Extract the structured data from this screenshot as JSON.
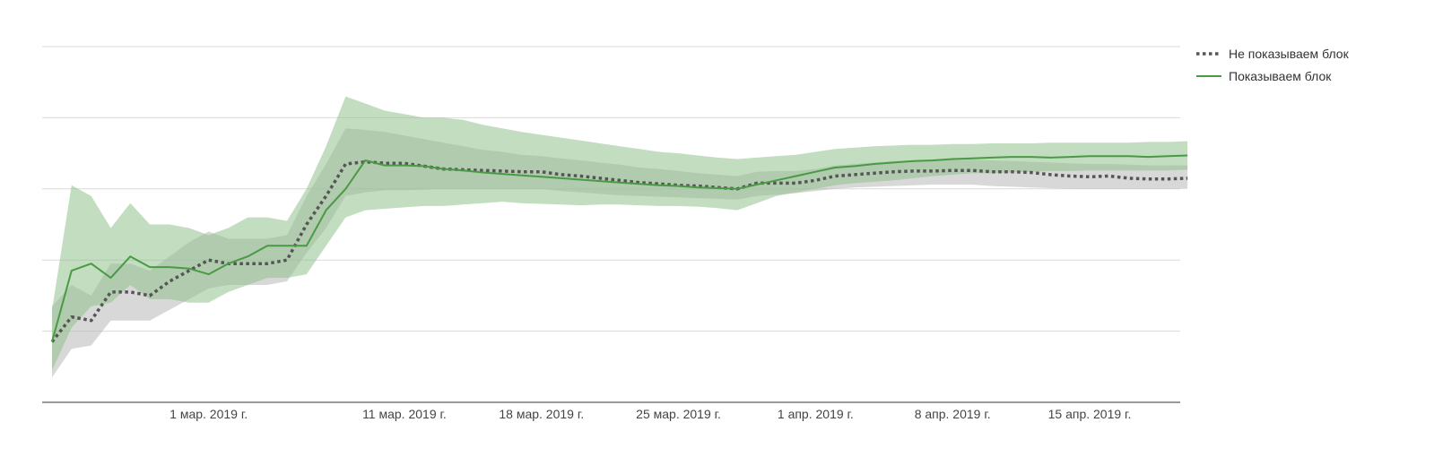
{
  "chart_data": {
    "type": "line",
    "title": "",
    "xlabel": "",
    "ylabel": "",
    "grid": true,
    "legend_position": "top-right",
    "x_ticks": [
      "1 мар. 2019 г.",
      "11 мар. 2019 г.",
      "18 мар. 2019 г.",
      "25 мар. 2019 г.",
      "1 апр. 2019 г.",
      "8 апр. 2019 г.",
      "15 апр. 2019 г."
    ],
    "y_tick_labels": [],
    "ylim": [
      0,
      5
    ],
    "x_start": "2019-02-21",
    "series": [
      {
        "name": "Не показываем блок",
        "color": "#555555",
        "band_color": "#b8b8b8",
        "style": "dotted",
        "values": [
          0.85,
          1.2,
          1.15,
          1.55,
          1.55,
          1.5,
          1.7,
          1.85,
          2.0,
          1.95,
          1.95,
          1.95,
          2.0,
          2.5,
          2.9,
          3.35,
          3.38,
          3.36,
          3.36,
          3.32,
          3.28,
          3.27,
          3.26,
          3.25,
          3.24,
          3.24,
          3.2,
          3.18,
          3.15,
          3.12,
          3.09,
          3.07,
          3.05,
          3.04,
          3.02,
          3.0,
          3.08,
          3.08,
          3.08,
          3.12,
          3.18,
          3.2,
          3.22,
          3.24,
          3.25,
          3.25,
          3.26,
          3.26,
          3.24,
          3.24,
          3.23,
          3.2,
          3.18,
          3.17,
          3.18,
          3.15,
          3.14,
          3.14,
          3.15
        ],
        "lower": [
          0.35,
          0.75,
          0.8,
          1.15,
          1.15,
          1.15,
          1.3,
          1.45,
          1.6,
          1.65,
          1.65,
          1.65,
          1.7,
          2.1,
          2.45,
          2.9,
          2.95,
          2.98,
          2.98,
          2.99,
          3.0,
          3.0,
          3.0,
          3.0,
          3.0,
          3.0,
          2.97,
          2.95,
          2.93,
          2.91,
          2.9,
          2.89,
          2.88,
          2.87,
          2.86,
          2.85,
          2.9,
          2.92,
          2.94,
          2.97,
          3.0,
          3.02,
          3.03,
          3.04,
          3.05,
          3.06,
          3.06,
          3.06,
          3.04,
          3.03,
          3.02,
          3.01,
          3.0,
          3.0,
          3.0,
          3.0,
          3.0,
          3.0,
          3.0
        ],
        "upper": [
          1.35,
          1.65,
          1.5,
          1.95,
          1.95,
          1.85,
          2.05,
          2.25,
          2.4,
          2.3,
          2.3,
          2.3,
          2.35,
          2.9,
          3.35,
          3.85,
          3.83,
          3.8,
          3.75,
          3.7,
          3.65,
          3.6,
          3.55,
          3.52,
          3.48,
          3.46,
          3.43,
          3.4,
          3.37,
          3.34,
          3.3,
          3.28,
          3.25,
          3.22,
          3.2,
          3.18,
          3.24,
          3.25,
          3.25,
          3.28,
          3.33,
          3.35,
          3.37,
          3.39,
          3.4,
          3.4,
          3.41,
          3.41,
          3.4,
          3.39,
          3.38,
          3.37,
          3.36,
          3.35,
          3.35,
          3.34,
          3.33,
          3.33,
          3.33
        ]
      },
      {
        "name": "Показываем блок",
        "color": "#4a9a45",
        "band_color": "#8fc18a",
        "style": "solid",
        "values": [
          0.85,
          1.85,
          1.95,
          1.75,
          2.05,
          1.9,
          1.9,
          1.88,
          1.8,
          1.95,
          2.05,
          2.2,
          2.2,
          2.2,
          2.7,
          3.0,
          3.4,
          3.33,
          3.33,
          3.32,
          3.28,
          3.26,
          3.23,
          3.21,
          3.19,
          3.17,
          3.15,
          3.13,
          3.11,
          3.09,
          3.07,
          3.05,
          3.04,
          3.02,
          3.01,
          3.0,
          3.06,
          3.12,
          3.18,
          3.24,
          3.3,
          3.32,
          3.35,
          3.37,
          3.39,
          3.4,
          3.42,
          3.43,
          3.44,
          3.45,
          3.45,
          3.44,
          3.45,
          3.46,
          3.46,
          3.46,
          3.45,
          3.46,
          3.47
        ],
        "lower": [
          0.45,
          1.05,
          1.35,
          1.4,
          1.65,
          1.45,
          1.45,
          1.4,
          1.4,
          1.55,
          1.65,
          1.75,
          1.75,
          1.8,
          2.2,
          2.6,
          2.7,
          2.72,
          2.74,
          2.76,
          2.76,
          2.78,
          2.8,
          2.82,
          2.8,
          2.79,
          2.78,
          2.77,
          2.78,
          2.78,
          2.77,
          2.76,
          2.76,
          2.75,
          2.73,
          2.7,
          2.8,
          2.9,
          2.95,
          3.0,
          3.05,
          3.08,
          3.1,
          3.12,
          3.15,
          3.18,
          3.2,
          3.22,
          3.22,
          3.23,
          3.24,
          3.25,
          3.25,
          3.26,
          3.26,
          3.26,
          3.26,
          3.26,
          3.27
        ],
        "upper": [
          1.3,
          3.05,
          2.9,
          2.45,
          2.8,
          2.5,
          2.5,
          2.45,
          2.35,
          2.45,
          2.6,
          2.6,
          2.55,
          3.0,
          3.6,
          4.3,
          4.2,
          4.1,
          4.05,
          4.0,
          4.0,
          3.97,
          3.9,
          3.85,
          3.8,
          3.76,
          3.72,
          3.68,
          3.64,
          3.6,
          3.56,
          3.52,
          3.5,
          3.47,
          3.44,
          3.42,
          3.44,
          3.46,
          3.48,
          3.52,
          3.56,
          3.58,
          3.6,
          3.61,
          3.62,
          3.62,
          3.63,
          3.63,
          3.64,
          3.64,
          3.64,
          3.65,
          3.65,
          3.65,
          3.65,
          3.65,
          3.66,
          3.66,
          3.67
        ]
      }
    ]
  }
}
